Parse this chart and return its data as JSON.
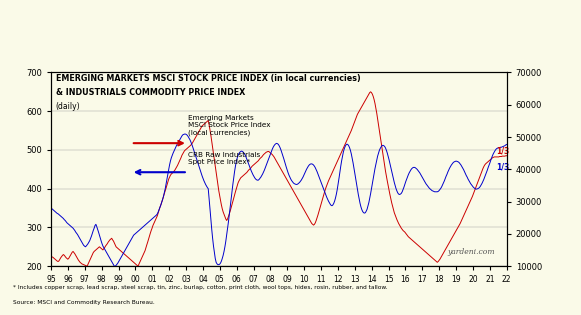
{
  "title_line1": "EMERGING MARKETS MSCI STOCK PRICE INDEX (in local currencies)",
  "title_line2": "& INDUSTRIALS COMMODITY PRICE INDEX",
  "title_line3": "(daily)",
  "background_color": "#FAFAE8",
  "left_ylim": [
    200,
    700
  ],
  "right_ylim": [
    10000,
    70000
  ],
  "left_yticks": [
    200,
    300,
    400,
    500,
    600,
    700
  ],
  "right_yticks": [
    10000,
    20000,
    30000,
    40000,
    50000,
    60000,
    70000
  ],
  "xtick_labels": [
    "95",
    "96",
    "97",
    "98",
    "99",
    "00",
    "01",
    "02",
    "03",
    "04",
    "05",
    "06",
    "07",
    "08",
    "09",
    "10",
    "11",
    "12",
    "13",
    "14",
    "15",
    "16",
    "17",
    "18",
    "19",
    "20",
    "21",
    "22"
  ],
  "watermark": "yardeni.com",
  "footnote1": "* Includes copper scrap, lead scrap, steel scrap, tin, zinc, burlap, cotton, print cloth, wool tops, hides, rosin, rubber, and tallow.",
  "footnote2": "Source: MSCI and Commodity Research Bureau.",
  "legend_label1": "Emerging Markets\nMSCI Stock Price Index\n(local currencies)",
  "legend_label2": "CRB Raw Industrials\nSpot Price Index*",
  "red_color": "#CC0000",
  "blue_color": "#0000CC",
  "annotation_red": "1/3",
  "annotation_blue": "1/3",
  "crb_data": [
    225,
    224,
    223,
    221,
    219,
    217,
    215,
    213,
    212,
    214,
    218,
    222,
    225,
    228,
    230,
    228,
    225,
    222,
    220,
    218,
    220,
    224,
    228,
    232,
    236,
    238,
    235,
    232,
    228,
    224,
    220,
    216,
    213,
    210,
    208,
    206,
    205,
    204,
    203,
    202,
    201,
    200,
    205,
    210,
    215,
    220,
    225,
    230,
    235,
    238,
    240,
    242,
    244,
    246,
    248,
    250,
    248,
    246,
    244,
    242,
    245,
    248,
    252,
    255,
    258,
    262,
    265,
    268,
    270,
    272,
    268,
    265,
    260,
    255,
    250,
    248,
    246,
    244,
    242,
    240,
    238,
    236,
    234,
    232,
    230,
    228,
    226,
    224,
    222,
    220,
    218,
    216,
    214,
    212,
    210,
    208,
    206,
    204,
    202,
    200,
    205,
    210,
    215,
    220,
    225,
    230,
    235,
    240,
    248,
    255,
    262,
    270,
    278,
    285,
    292,
    298,
    305,
    310,
    315,
    320,
    325,
    330,
    338,
    345,
    352,
    358,
    365,
    372,
    380,
    388,
    395,
    402,
    410,
    418,
    425,
    430,
    435,
    438,
    440,
    442,
    445,
    448,
    452,
    456,
    460,
    465,
    470,
    475,
    480,
    486,
    490,
    494,
    498,
    500,
    502,
    504,
    506,
    508,
    510,
    512,
    515,
    518,
    522,
    526,
    530,
    534,
    538,
    542,
    546,
    550,
    554,
    558,
    562,
    564,
    566,
    568,
    570,
    572,
    574,
    576,
    565,
    552,
    538,
    522,
    505,
    488,
    472,
    456,
    440,
    425,
    410,
    395,
    382,
    370,
    358,
    348,
    340,
    334,
    328,
    322,
    318,
    322,
    328,
    335,
    342,
    350,
    358,
    366,
    375,
    384,
    392,
    400,
    408,
    415,
    420,
    424,
    428,
    430,
    432,
    434,
    436,
    438,
    440,
    442,
    445,
    448,
    450,
    452,
    455,
    458,
    460,
    462,
    464,
    466,
    468,
    470,
    472,
    475,
    478,
    480,
    482,
    485,
    488,
    490,
    492,
    494,
    495,
    496,
    496,
    494,
    492,
    490,
    488,
    485,
    482,
    478,
    474,
    470,
    466,
    462,
    458,
    454,
    450,
    446,
    442,
    438,
    434,
    430,
    426,
    422,
    418,
    414,
    410,
    406,
    402,
    398,
    394,
    390,
    386,
    382,
    378,
    374,
    370,
    366,
    362,
    358,
    354,
    350,
    346,
    342,
    338,
    334,
    330,
    326,
    322,
    318,
    314,
    310,
    308,
    306,
    308,
    312,
    318,
    325,
    332,
    340,
    348,
    356,
    364,
    372,
    380,
    388,
    395,
    402,
    408,
    414,
    420,
    425,
    430,
    435,
    440,
    445,
    450,
    455,
    460,
    465,
    470,
    475,
    480,
    485,
    490,
    495,
    500,
    505,
    510,
    515,
    520,
    525,
    530,
    535,
    540,
    545,
    550,
    556,
    562,
    568,
    574,
    580,
    586,
    592,
    596,
    600,
    604,
    608,
    612,
    616,
    620,
    624,
    628,
    632,
    636,
    640,
    644,
    648,
    650,
    648,
    644,
    638,
    630,
    620,
    608,
    595,
    580,
    565,
    550,
    535,
    520,
    505,
    490,
    475,
    460,
    445,
    432,
    420,
    408,
    396,
    385,
    374,
    364,
    355,
    346,
    338,
    332,
    326,
    320,
    315,
    310,
    306,
    302,
    298,
    295,
    292,
    290,
    288,
    285,
    282,
    279,
    276,
    274,
    272,
    270,
    268,
    266,
    264,
    262,
    260,
    258,
    256,
    254,
    252,
    250,
    248,
    246,
    244,
    242,
    240,
    238,
    236,
    234,
    232,
    230,
    228,
    226,
    224,
    222,
    220,
    218,
    216,
    214,
    212,
    210,
    212,
    215,
    218,
    222,
    226,
    230,
    234,
    238,
    242,
    246,
    250,
    254,
    258,
    262,
    266,
    270,
    274,
    278,
    282,
    286,
    290,
    294,
    298,
    302,
    306,
    310,
    315,
    320,
    325,
    330,
    335,
    340,
    345,
    350,
    355,
    360,
    365,
    370,
    375,
    380,
    386,
    392,
    398,
    404,
    410,
    416,
    422,
    428,
    434,
    440,
    446,
    452,
    457,
    461,
    464,
    466,
    468,
    470,
    472,
    474,
    476,
    478,
    480,
    481,
    482,
    482,
    482,
    482,
    482,
    482,
    483,
    483,
    483,
    484,
    484,
    484,
    484,
    485,
    485
  ],
  "msci_data": [
    350,
    348,
    346,
    344,
    342,
    340,
    338,
    336,
    335,
    333,
    331,
    329,
    327,
    325,
    323,
    320,
    318,
    315,
    312,
    310,
    308,
    306,
    304,
    302,
    300,
    298,
    295,
    292,
    288,
    285,
    282,
    278,
    274,
    270,
    266,
    262,
    258,
    254,
    252,
    250,
    252,
    255,
    258,
    262,
    266,
    272,
    278,
    285,
    292,
    298,
    305,
    308,
    302,
    295,
    288,
    280,
    272,
    265,
    258,
    252,
    248,
    244,
    240,
    236,
    232,
    228,
    224,
    220,
    216,
    212,
    208,
    204,
    200,
    200,
    202,
    205,
    208,
    212,
    216,
    220,
    224,
    228,
    232,
    236,
    240,
    244,
    248,
    252,
    256,
    260,
    264,
    268,
    272,
    276,
    280,
    282,
    284,
    286,
    288,
    290,
    292,
    294,
    296,
    298,
    300,
    302,
    304,
    306,
    308,
    310,
    312,
    314,
    316,
    318,
    320,
    322,
    324,
    326,
    328,
    330,
    332,
    335,
    340,
    346,
    352,
    358,
    365,
    372,
    380,
    390,
    400,
    412,
    425,
    438,
    450,
    462,
    472,
    480,
    486,
    492,
    497,
    502,
    507,
    512,
    516,
    520,
    524,
    528,
    532,
    536,
    539,
    540,
    541,
    541,
    540,
    538,
    535,
    531,
    527,
    522,
    516,
    510,
    503,
    496,
    489,
    482,
    475,
    468,
    461,
    454,
    447,
    440,
    433,
    427,
    421,
    416,
    411,
    407,
    403,
    400,
    375,
    348,
    320,
    295,
    272,
    252,
    235,
    220,
    210,
    206,
    204,
    204,
    205,
    208,
    213,
    220,
    228,
    238,
    250,
    264,
    280,
    296,
    314,
    332,
    352,
    372,
    392,
    410,
    428,
    444,
    458,
    470,
    479,
    486,
    491,
    494,
    496,
    497,
    496,
    494,
    491,
    487,
    482,
    476,
    470,
    464,
    458,
    452,
    446,
    441,
    436,
    432,
    428,
    425,
    423,
    422,
    422,
    424,
    427,
    430,
    434,
    438,
    443,
    448,
    454,
    460,
    466,
    472,
    478,
    484,
    490,
    496,
    502,
    507,
    511,
    514,
    516,
    517,
    516,
    514,
    510,
    505,
    499,
    492,
    485,
    478,
    470,
    462,
    455,
    448,
    441,
    435,
    430,
    425,
    421,
    418,
    415,
    413,
    412,
    411,
    411,
    412,
    414,
    416,
    419,
    422,
    426,
    430,
    435,
    440,
    445,
    450,
    454,
    458,
    461,
    463,
    464,
    464,
    463,
    461,
    458,
    454,
    449,
    444,
    438,
    432,
    426,
    420,
    414,
    408,
    402,
    396,
    390,
    384,
    378,
    373,
    368,
    364,
    360,
    357,
    356,
    358,
    362,
    368,
    376,
    386,
    398,
    412,
    427,
    443,
    458,
    472,
    484,
    495,
    503,
    509,
    513,
    515,
    514,
    511,
    506,
    499,
    490,
    479,
    467,
    454,
    440,
    426,
    412,
    398,
    385,
    373,
    362,
    353,
    346,
    341,
    338,
    337,
    338,
    342,
    347,
    355,
    364,
    375,
    387,
    400,
    413,
    426,
    439,
    452,
    463,
    474,
    484,
    492,
    499,
    504,
    508,
    511,
    512,
    511,
    509,
    505,
    499,
    492,
    484,
    475,
    465,
    455,
    445,
    435,
    425,
    416,
    408,
    400,
    394,
    389,
    386,
    385,
    386,
    388,
    392,
    398,
    404,
    411,
    418,
    424,
    430,
    436,
    441,
    445,
    449,
    452,
    454,
    455,
    455,
    454,
    452,
    450,
    447,
    444,
    441,
    437,
    433,
    429,
    425,
    421,
    417,
    413,
    410,
    407,
    404,
    401,
    399,
    397,
    395,
    394,
    393,
    392,
    392,
    392,
    392,
    393,
    395,
    398,
    401,
    405,
    410,
    415,
    420,
    426,
    432,
    437,
    443,
    448,
    453,
    457,
    461,
    464,
    467,
    469,
    470,
    471,
    471,
    470,
    469,
    467,
    464,
    461,
    457,
    453,
    449,
    444,
    439,
    434,
    430,
    425,
    421,
    417,
    413,
    410,
    407,
    404,
    402,
    400,
    399,
    399,
    400,
    401,
    403,
    406,
    410,
    414,
    419,
    424,
    430,
    436,
    442,
    448,
    455,
    461,
    467,
    474,
    480,
    486,
    491,
    495,
    499,
    502,
    504,
    505,
    506,
    506,
    507,
    507,
    508,
    509,
    510,
    511,
    513,
    514
  ]
}
